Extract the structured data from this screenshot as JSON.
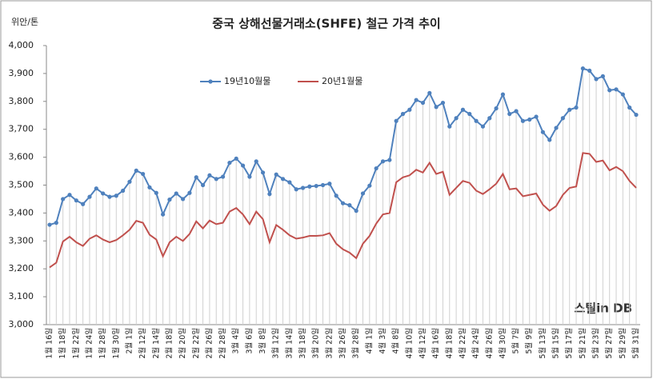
{
  "chart_data": {
    "type": "line",
    "title": "중국 상해선물거래소(SHFE) 철근 가격 추이",
    "y_label": "위안/톤",
    "watermark": "스틸in DB",
    "categories": [
      "1월 16일",
      null,
      "1월 18일",
      null,
      "1월 22일",
      null,
      "1월 24일",
      null,
      "1월 28일",
      null,
      "1월 30일",
      null,
      "2월 1일",
      null,
      "2월 12일",
      null,
      "2월 14일",
      null,
      "2월 18일",
      null,
      "2월 20일",
      null,
      "2월 22일",
      null,
      "2월 26일",
      null,
      "2월 28일",
      null,
      "3월 4일",
      null,
      "3월 6일",
      null,
      "3월 8일",
      null,
      "3월 12일",
      null,
      "3월 14일",
      null,
      "3월 18일",
      null,
      "3월 20일",
      null,
      "3월 22일",
      null,
      "3월 26일",
      null,
      "3월 28일",
      null,
      "4월 1일",
      null,
      "4월 3일",
      null,
      "4월 8일",
      null,
      "4월 10일",
      null,
      "4월 12일",
      null,
      "4월 16일",
      null,
      "4월 18일",
      null,
      "4월 22일",
      null,
      "4월 24일",
      null,
      "4월 26일",
      null,
      "4월 30일",
      null,
      "5월 7일",
      null,
      "5월 9일",
      null,
      "5월 13일",
      null,
      "5월 15일",
      null,
      "5월 17일",
      null,
      "5월 21일",
      null,
      "5월 23일",
      null,
      "5월 27일",
      null,
      "5월 29일",
      null,
      "5월 31일"
    ],
    "series": [
      {
        "name": "19년10월물",
        "color": "#4f81bd",
        "markers": true,
        "values": [
          3358,
          3365,
          3450,
          3465,
          3445,
          3432,
          3458,
          3488,
          3470,
          3458,
          3462,
          3480,
          3512,
          3552,
          3540,
          3492,
          3472,
          3395,
          3448,
          3470,
          3450,
          3472,
          3528,
          3500,
          3535,
          3522,
          3530,
          3580,
          3595,
          3570,
          3530,
          3585,
          3545,
          3468,
          3538,
          3522,
          3510,
          3485,
          3490,
          3495,
          3497,
          3500,
          3505,
          3462,
          3435,
          3428,
          3408,
          3470,
          3498,
          3560,
          3585,
          3590,
          3730,
          3755,
          3770,
          3805,
          3795,
          3830,
          3780,
          3795,
          3710,
          3740,
          3770,
          3755,
          3730,
          3710,
          3740,
          3775,
          3825,
          3755,
          3765,
          3730,
          3735,
          3745,
          3690,
          3662,
          3705,
          3740,
          3770,
          3778,
          3918,
          3910,
          3880,
          3890,
          3840,
          3843,
          3825,
          3778,
          3752
        ]
      },
      {
        "name": "20년1월물",
        "color": "#c0504d",
        "markers": false,
        "values": [
          3205,
          3222,
          3298,
          3315,
          3295,
          3282,
          3308,
          3320,
          3305,
          3295,
          3303,
          3320,
          3340,
          3372,
          3365,
          3322,
          3305,
          3245,
          3295,
          3315,
          3300,
          3325,
          3370,
          3345,
          3373,
          3360,
          3365,
          3405,
          3418,
          3395,
          3360,
          3405,
          3378,
          3295,
          3357,
          3340,
          3320,
          3308,
          3312,
          3318,
          3318,
          3320,
          3328,
          3290,
          3270,
          3258,
          3238,
          3290,
          3318,
          3362,
          3395,
          3400,
          3510,
          3528,
          3535,
          3555,
          3545,
          3580,
          3540,
          3548,
          3465,
          3490,
          3515,
          3508,
          3480,
          3468,
          3485,
          3505,
          3540,
          3485,
          3488,
          3460,
          3465,
          3470,
          3430,
          3408,
          3425,
          3465,
          3490,
          3495,
          3615,
          3612,
          3583,
          3588,
          3553,
          3565,
          3550,
          3515,
          3490
        ]
      }
    ],
    "ylim": [
      3000,
      4000
    ],
    "yticks": [
      {
        "value": 3000,
        "label": "3,000"
      },
      {
        "value": 3100,
        "label": "3,100"
      },
      {
        "value": 3200,
        "label": "3,200"
      },
      {
        "value": 3300,
        "label": "3,300"
      },
      {
        "value": 3400,
        "label": "3,400"
      },
      {
        "value": 3500,
        "label": "3,500"
      },
      {
        "value": 3600,
        "label": "3,600"
      },
      {
        "value": 3700,
        "label": "3,700"
      },
      {
        "value": 3800,
        "label": "3,800"
      },
      {
        "value": 3900,
        "label": "3,900"
      },
      {
        "value": 4000,
        "label": "4,000"
      }
    ],
    "drop_lines": true
  }
}
